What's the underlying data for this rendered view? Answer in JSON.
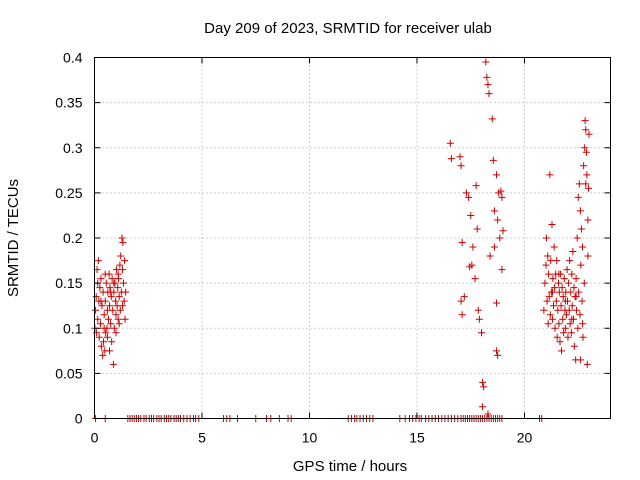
{
  "chart_data": {
    "type": "scatter",
    "title": "Day 209 of 2023, SRMTID for receiver ulab",
    "xlabel": "GPS time / hours",
    "ylabel": "SRMTID / TECUs",
    "xlim": [
      0,
      24
    ],
    "ylim": [
      0,
      0.4
    ],
    "xticks": [
      0,
      5,
      10,
      15,
      20
    ],
    "xtick_labels": [
      "0",
      "5",
      "10",
      "15",
      "20"
    ],
    "yticks": [
      0,
      0.05,
      0.1,
      0.15,
      0.2,
      0.25,
      0.3,
      0.35,
      0.4
    ],
    "ytick_labels": [
      "0",
      "0.05",
      "0.1",
      "0.15",
      "0.2",
      "0.25",
      "0.3",
      "0.35",
      "0.4"
    ],
    "grid": true,
    "marker": "plus",
    "series": [
      {
        "name": "SRMTID",
        "color": "#cc0000",
        "points": [
          [
            0.02,
            0.1
          ],
          [
            0.05,
            0.12
          ],
          [
            0.08,
            0.135
          ],
          [
            0.1,
            0.095
          ],
          [
            0.12,
            0.165
          ],
          [
            0.15,
            0.11
          ],
          [
            0.18,
            0.175
          ],
          [
            0.2,
            0.13
          ],
          [
            0.22,
            0.09
          ],
          [
            0.25,
            0.145
          ],
          [
            0.28,
            0.105
          ],
          [
            0.3,
            0.155
          ],
          [
            0.32,
            0.08
          ],
          [
            0.35,
            0.125
          ],
          [
            0.38,
            0.07
          ],
          [
            0.4,
            0.14
          ],
          [
            0.42,
            0.085
          ],
          [
            0.45,
            0.115
          ],
          [
            0.48,
            0.075
          ],
          [
            0.5,
            0.13
          ],
          [
            0.52,
            0.095
          ],
          [
            0.55,
            0.15
          ],
          [
            0.58,
            0.1
          ],
          [
            0.6,
            0.12
          ],
          [
            0.62,
            0.14
          ],
          [
            0.65,
            0.11
          ],
          [
            0.68,
            0.16
          ],
          [
            0.7,
            0.125
          ],
          [
            0.72,
            0.145
          ],
          [
            0.75,
            0.105
          ],
          [
            0.78,
            0.135
          ],
          [
            0.8,
            0.085
          ],
          [
            0.82,
            0.155
          ],
          [
            0.85,
            0.12
          ],
          [
            0.88,
            0.06
          ],
          [
            0.9,
            0.14
          ],
          [
            0.92,
            0.1
          ],
          [
            0.95,
            0.15
          ],
          [
            0.98,
            0.13
          ],
          [
            1.0,
            0.115
          ],
          [
            1.02,
            0.165
          ],
          [
            1.05,
            0.125
          ],
          [
            1.08,
            0.145
          ],
          [
            1.1,
            0.11
          ],
          [
            1.12,
            0.155
          ],
          [
            1.15,
            0.135
          ],
          [
            1.18,
            0.17
          ],
          [
            1.2,
            0.12
          ],
          [
            1.22,
            0.18
          ],
          [
            1.25,
            0.14
          ],
          [
            1.28,
            0.2
          ],
          [
            1.3,
            0.125
          ],
          [
            1.32,
            0.195
          ],
          [
            1.35,
            0.15
          ],
          [
            1.38,
            0.13
          ],
          [
            1.4,
            0.175
          ],
          [
            1.42,
            0.11
          ],
          [
            1.45,
            0.14
          ],
          [
            0.6,
            0.09
          ],
          [
            0.7,
            0.075
          ],
          [
            1.0,
            0.095
          ],
          [
            0.3,
            0.13
          ],
          [
            0.5,
            0.16
          ],
          [
            0.9,
            0.15
          ],
          [
            1.1,
            0.16
          ],
          [
            1.3,
            0.165
          ],
          [
            0.15,
            0.15
          ],
          [
            0.45,
            0.1
          ],
          [
            0.75,
            0.14
          ],
          [
            1.15,
            0.105
          ],
          [
            16.55,
            0.305
          ],
          [
            16.6,
            0.288
          ],
          [
            17.0,
            0.29
          ],
          [
            17.05,
            0.28
          ],
          [
            17.1,
            0.195
          ],
          [
            17.05,
            0.13
          ],
          [
            17.1,
            0.115
          ],
          [
            17.2,
            0.135
          ],
          [
            17.3,
            0.25
          ],
          [
            17.4,
            0.245
          ],
          [
            17.45,
            0.168
          ],
          [
            17.5,
            0.225
          ],
          [
            17.55,
            0.17
          ],
          [
            17.6,
            0.19
          ],
          [
            17.7,
            0.155
          ],
          [
            17.75,
            0.258
          ],
          [
            17.8,
            0.21
          ],
          [
            17.85,
            0.12
          ],
          [
            17.9,
            0.11
          ],
          [
            18.0,
            0.095
          ],
          [
            18.05,
            0.04
          ],
          [
            18.1,
            0.035
          ],
          [
            18.05,
            0.013
          ],
          [
            18.2,
            0.395
          ],
          [
            18.25,
            0.378
          ],
          [
            18.3,
            0.37
          ],
          [
            18.35,
            0.36
          ],
          [
            18.3,
            0.005
          ],
          [
            18.4,
            0.18
          ],
          [
            18.5,
            0.332
          ],
          [
            18.55,
            0.286
          ],
          [
            18.6,
            0.19
          ],
          [
            18.7,
            0.27
          ],
          [
            18.75,
            0.22
          ],
          [
            18.7,
            0.128
          ],
          [
            18.8,
            0.25
          ],
          [
            18.7,
            0.075
          ],
          [
            18.75,
            0.07
          ],
          [
            18.85,
            0.2
          ],
          [
            18.9,
            0.252
          ],
          [
            18.95,
            0.165
          ],
          [
            19.0,
            0.208
          ],
          [
            18.95,
            0.245
          ],
          [
            18.6,
            0.23
          ],
          [
            20.9,
            0.12
          ],
          [
            20.95,
            0.15
          ],
          [
            21.0,
            0.17
          ],
          [
            21.02,
            0.2
          ],
          [
            21.05,
            0.13
          ],
          [
            21.08,
            0.18
          ],
          [
            21.1,
            0.105
          ],
          [
            21.12,
            0.16
          ],
          [
            21.15,
            0.135
          ],
          [
            21.18,
            0.27
          ],
          [
            21.2,
            0.115
          ],
          [
            21.22,
            0.175
          ],
          [
            21.25,
            0.14
          ],
          [
            21.28,
            0.215
          ],
          [
            21.3,
            0.11
          ],
          [
            21.32,
            0.155
          ],
          [
            21.35,
            0.125
          ],
          [
            21.38,
            0.19
          ],
          [
            21.4,
            0.145
          ],
          [
            21.42,
            0.1
          ],
          [
            21.45,
            0.16
          ],
          [
            21.48,
            0.13
          ],
          [
            21.5,
            0.175
          ],
          [
            21.52,
            0.09
          ],
          [
            21.55,
            0.12
          ],
          [
            21.58,
            0.15
          ],
          [
            21.6,
            0.105
          ],
          [
            21.62,
            0.14
          ],
          [
            21.65,
            0.085
          ],
          [
            21.68,
            0.16
          ],
          [
            21.7,
            0.125
          ],
          [
            21.72,
            0.075
          ],
          [
            21.75,
            0.145
          ],
          [
            21.78,
            0.11
          ],
          [
            21.8,
            0.135
          ],
          [
            21.82,
            0.095
          ],
          [
            21.85,
            0.155
          ],
          [
            21.88,
            0.12
          ],
          [
            21.9,
            0.1
          ],
          [
            21.92,
            0.14
          ],
          [
            21.95,
            0.115
          ],
          [
            21.98,
            0.165
          ],
          [
            22.0,
            0.13
          ],
          [
            22.02,
            0.09
          ],
          [
            22.05,
            0.15
          ],
          [
            22.08,
            0.12
          ],
          [
            22.1,
            0.175
          ],
          [
            22.12,
            0.105
          ],
          [
            22.15,
            0.14
          ],
          [
            22.18,
            0.095
          ],
          [
            22.2,
            0.16
          ],
          [
            22.22,
            0.125
          ],
          [
            22.25,
            0.185
          ],
          [
            22.28,
            0.11
          ],
          [
            22.3,
            0.145
          ],
          [
            22.32,
            0.08
          ],
          [
            22.35,
            0.135
          ],
          [
            22.38,
            0.065
          ],
          [
            22.4,
            0.155
          ],
          [
            22.42,
            0.12
          ],
          [
            22.45,
            0.2
          ],
          [
            22.48,
            0.1
          ],
          [
            22.5,
            0.245
          ],
          [
            22.52,
            0.14
          ],
          [
            22.55,
            0.26
          ],
          [
            22.58,
            0.115
          ],
          [
            22.6,
            0.23
          ],
          [
            22.62,
            0.17
          ],
          [
            22.65,
            0.21
          ],
          [
            22.68,
            0.13
          ],
          [
            22.7,
            0.19
          ],
          [
            22.72,
            0.09
          ],
          [
            22.75,
            0.28
          ],
          [
            22.78,
            0.15
          ],
          [
            22.8,
            0.3
          ],
          [
            22.82,
            0.33
          ],
          [
            22.85,
            0.32
          ],
          [
            22.88,
            0.295
          ],
          [
            22.9,
            0.27
          ],
          [
            22.92,
            0.06
          ],
          [
            22.95,
            0.22
          ],
          [
            22.98,
            0.255
          ],
          [
            23.0,
            0.315
          ],
          [
            21.9,
            0.13
          ],
          [
            22.2,
            0.11
          ],
          [
            22.4,
            0.135
          ],
          [
            21.6,
            0.16
          ],
          [
            21.3,
            0.14
          ],
          [
            22.7,
            0.105
          ],
          [
            22.85,
            0.26
          ],
          [
            22.95,
            0.18
          ],
          [
            22.6,
            0.065
          ],
          [
            0.05,
            0
          ],
          [
            0.5,
            0
          ],
          [
            1.55,
            0
          ],
          [
            1.65,
            0
          ],
          [
            1.75,
            0
          ],
          [
            1.85,
            0
          ],
          [
            1.95,
            0
          ],
          [
            2.05,
            0
          ],
          [
            2.15,
            0
          ],
          [
            2.3,
            0
          ],
          [
            2.4,
            0
          ],
          [
            2.55,
            0
          ],
          [
            2.65,
            0
          ],
          [
            2.75,
            0
          ],
          [
            2.9,
            0
          ],
          [
            3.0,
            0
          ],
          [
            3.1,
            0
          ],
          [
            3.25,
            0
          ],
          [
            3.35,
            0
          ],
          [
            3.45,
            0
          ],
          [
            3.55,
            0
          ],
          [
            3.7,
            0
          ],
          [
            3.8,
            0
          ],
          [
            3.9,
            0
          ],
          [
            4.0,
            0
          ],
          [
            4.15,
            0
          ],
          [
            4.3,
            0
          ],
          [
            4.45,
            0
          ],
          [
            4.6,
            0
          ],
          [
            4.7,
            0
          ],
          [
            4.85,
            0
          ],
          [
            6.0,
            0
          ],
          [
            6.15,
            0
          ],
          [
            6.3,
            0
          ],
          [
            6.65,
            0
          ],
          [
            7.5,
            0
          ],
          [
            8.0,
            0
          ],
          [
            8.2,
            0
          ],
          [
            8.6,
            0
          ],
          [
            9.0,
            0
          ],
          [
            9.15,
            0
          ],
          [
            11.8,
            0
          ],
          [
            11.95,
            0
          ],
          [
            12.1,
            0
          ],
          [
            12.2,
            0
          ],
          [
            12.35,
            0
          ],
          [
            12.5,
            0
          ],
          [
            12.65,
            0
          ],
          [
            12.8,
            0
          ],
          [
            12.95,
            0
          ],
          [
            14.2,
            0
          ],
          [
            14.45,
            0
          ],
          [
            14.65,
            0
          ],
          [
            14.8,
            0
          ],
          [
            14.95,
            0
          ],
          [
            15.1,
            0
          ],
          [
            15.2,
            0
          ],
          [
            15.4,
            0
          ],
          [
            15.55,
            0
          ],
          [
            15.7,
            0
          ],
          [
            15.85,
            0
          ],
          [
            16.0,
            0
          ],
          [
            16.15,
            0
          ],
          [
            16.3,
            0
          ],
          [
            16.45,
            0
          ],
          [
            16.6,
            0
          ],
          [
            16.75,
            0
          ],
          [
            16.9,
            0
          ],
          [
            17.05,
            0
          ],
          [
            17.15,
            0
          ],
          [
            17.25,
            0
          ],
          [
            17.35,
            0
          ],
          [
            17.45,
            0
          ],
          [
            17.55,
            0
          ],
          [
            17.65,
            0
          ],
          [
            17.75,
            0
          ],
          [
            17.85,
            0
          ],
          [
            17.95,
            0
          ],
          [
            18.05,
            0
          ],
          [
            18.15,
            0
          ],
          [
            18.25,
            0
          ],
          [
            18.35,
            0
          ],
          [
            18.45,
            0
          ],
          [
            18.55,
            0
          ],
          [
            18.65,
            0
          ],
          [
            18.75,
            0
          ],
          [
            18.85,
            0
          ],
          [
            18.95,
            0
          ],
          [
            20.7,
            0
          ],
          [
            20.8,
            0
          ]
        ]
      }
    ]
  }
}
